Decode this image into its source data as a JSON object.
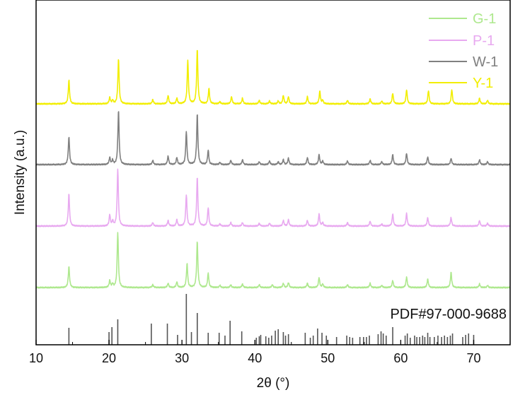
{
  "chart_data": {
    "type": "line",
    "title": "",
    "xlabel": "2θ (°)",
    "ylabel": "Intensity (a.u.)",
    "xlim": [
      10,
      75
    ],
    "xticks": [
      10,
      20,
      30,
      40,
      50,
      60,
      70
    ],
    "y_ticks_shown": false,
    "grid": false,
    "legend_position": "top-right",
    "legend": [
      {
        "name": "G-1",
        "color": "#aee88e"
      },
      {
        "name": "P-1",
        "color": "#e8a9f0"
      },
      {
        "name": "W-1",
        "color": "#808080"
      },
      {
        "name": "Y-1",
        "color": "#f2ee00"
      }
    ],
    "series": [
      {
        "name": "G-1",
        "color": "#aee88e",
        "peaks": [
          [
            14.5,
            30
          ],
          [
            20.1,
            10
          ],
          [
            20.5,
            5
          ],
          [
            21.2,
            78
          ],
          [
            26.0,
            4
          ],
          [
            28.1,
            6
          ],
          [
            29.3,
            8
          ],
          [
            30.7,
            34
          ],
          [
            32.1,
            66
          ],
          [
            33.6,
            20
          ],
          [
            35.2,
            3
          ],
          [
            36.7,
            4
          ],
          [
            38.3,
            5
          ],
          [
            40.6,
            4
          ],
          [
            42.4,
            4
          ],
          [
            43.9,
            6
          ],
          [
            44.6,
            7
          ],
          [
            47.2,
            6
          ],
          [
            48.8,
            14
          ],
          [
            49.3,
            5
          ],
          [
            52.7,
            4
          ],
          [
            55.8,
            6
          ],
          [
            57.4,
            3
          ],
          [
            58.9,
            10
          ],
          [
            60.8,
            15
          ],
          [
            63.7,
            12
          ],
          [
            66.9,
            22
          ],
          [
            70.8,
            5
          ],
          [
            71.9,
            3
          ]
        ]
      },
      {
        "name": "P-1",
        "color": "#e8a9f0",
        "peaks": [
          [
            14.5,
            46
          ],
          [
            20.1,
            16
          ],
          [
            20.5,
            7
          ],
          [
            21.2,
            80
          ],
          [
            26.0,
            5
          ],
          [
            28.1,
            8
          ],
          [
            29.3,
            9
          ],
          [
            30.6,
            44
          ],
          [
            32.1,
            70
          ],
          [
            33.6,
            26
          ],
          [
            35.2,
            3
          ],
          [
            36.7,
            5
          ],
          [
            38.3,
            5
          ],
          [
            40.6,
            4
          ],
          [
            42.0,
            4
          ],
          [
            43.9,
            8
          ],
          [
            44.6,
            9
          ],
          [
            47.2,
            8
          ],
          [
            48.8,
            17
          ],
          [
            49.3,
            5
          ],
          [
            52.7,
            5
          ],
          [
            55.8,
            7
          ],
          [
            57.4,
            3
          ],
          [
            58.9,
            17
          ],
          [
            60.8,
            18
          ],
          [
            63.7,
            12
          ],
          [
            66.9,
            12
          ],
          [
            70.8,
            8
          ],
          [
            71.9,
            4
          ]
        ]
      },
      {
        "name": "W-1",
        "color": "#808080",
        "peaks": [
          [
            14.5,
            40
          ],
          [
            20.1,
            10
          ],
          [
            20.5,
            6
          ],
          [
            21.3,
            77
          ],
          [
            26.0,
            6
          ],
          [
            28.1,
            12
          ],
          [
            29.3,
            10
          ],
          [
            30.6,
            46
          ],
          [
            32.1,
            72
          ],
          [
            33.6,
            20
          ],
          [
            35.2,
            3
          ],
          [
            36.7,
            6
          ],
          [
            38.3,
            7
          ],
          [
            40.6,
            4
          ],
          [
            42.0,
            5
          ],
          [
            43.2,
            4
          ],
          [
            43.9,
            7
          ],
          [
            44.6,
            9
          ],
          [
            47.2,
            10
          ],
          [
            48.8,
            14
          ],
          [
            49.3,
            5
          ],
          [
            52.7,
            5
          ],
          [
            55.8,
            6
          ],
          [
            57.4,
            4
          ],
          [
            58.9,
            14
          ],
          [
            60.8,
            16
          ],
          [
            63.7,
            11
          ],
          [
            66.9,
            9
          ],
          [
            70.8,
            7
          ],
          [
            71.9,
            4
          ]
        ]
      },
      {
        "name": "Y-1",
        "color": "#f2ee00",
        "peaks": [
          [
            14.5,
            34
          ],
          [
            20.1,
            9
          ],
          [
            20.5,
            5
          ],
          [
            21.3,
            64
          ],
          [
            26.0,
            6
          ],
          [
            28.1,
            12
          ],
          [
            29.3,
            8
          ],
          [
            30.8,
            62
          ],
          [
            32.1,
            78
          ],
          [
            33.7,
            22
          ],
          [
            35.2,
            3
          ],
          [
            36.8,
            10
          ],
          [
            38.3,
            8
          ],
          [
            40.6,
            5
          ],
          [
            42.0,
            4
          ],
          [
            43.2,
            4
          ],
          [
            43.9,
            12
          ],
          [
            44.6,
            10
          ],
          [
            47.2,
            10
          ],
          [
            48.9,
            18
          ],
          [
            49.3,
            5
          ],
          [
            52.7,
            5
          ],
          [
            55.8,
            7
          ],
          [
            57.4,
            4
          ],
          [
            58.9,
            15
          ],
          [
            60.8,
            20
          ],
          [
            63.8,
            19
          ],
          [
            67.0,
            20
          ],
          [
            70.8,
            8
          ],
          [
            71.9,
            5
          ]
        ]
      }
    ],
    "reference": {
      "label": "PDF#97-000-9688",
      "color": "#555555",
      "lines": [
        [
          14.5,
          24
        ],
        [
          20.0,
          18
        ],
        [
          20.4,
          25
        ],
        [
          21.2,
          36
        ],
        [
          25.8,
          30
        ],
        [
          28.0,
          30
        ],
        [
          29.4,
          14
        ],
        [
          30.6,
          72
        ],
        [
          31.3,
          18
        ],
        [
          32.1,
          45
        ],
        [
          33.6,
          17
        ],
        [
          35.1,
          17
        ],
        [
          35.9,
          13
        ],
        [
          36.6,
          34
        ],
        [
          38.2,
          19
        ],
        [
          40.2,
          10
        ],
        [
          40.6,
          12
        ],
        [
          40.8,
          14
        ],
        [
          41.5,
          12
        ],
        [
          41.9,
          10
        ],
        [
          42.3,
          13
        ],
        [
          42.8,
          20
        ],
        [
          43.2,
          22
        ],
        [
          43.9,
          18
        ],
        [
          44.2,
          13
        ],
        [
          44.6,
          15
        ],
        [
          46.9,
          17
        ],
        [
          47.6,
          10
        ],
        [
          48.0,
          13
        ],
        [
          48.6,
          23
        ],
        [
          49.2,
          17
        ],
        [
          49.8,
          13
        ],
        [
          51.2,
          11
        ],
        [
          52.6,
          13
        ],
        [
          53.0,
          11
        ],
        [
          53.4,
          10
        ],
        [
          54.4,
          11
        ],
        [
          54.9,
          11
        ],
        [
          55.3,
          11
        ],
        [
          55.7,
          13
        ],
        [
          56.9,
          15
        ],
        [
          57.3,
          19
        ],
        [
          57.6,
          16
        ],
        [
          58.0,
          13
        ],
        [
          58.9,
          25
        ],
        [
          60.6,
          13
        ],
        [
          60.9,
          16
        ],
        [
          61.3,
          10
        ],
        [
          61.9,
          13
        ],
        [
          62.2,
          11
        ],
        [
          62.6,
          11
        ],
        [
          63.0,
          13
        ],
        [
          63.3,
          11
        ],
        [
          63.7,
          17
        ],
        [
          64.0,
          11
        ],
        [
          64.6,
          11
        ],
        [
          65.1,
          13
        ],
        [
          65.6,
          11
        ],
        [
          66.0,
          13
        ],
        [
          66.4,
          11
        ],
        [
          66.8,
          13
        ],
        [
          67.1,
          16
        ],
        [
          68.5,
          11
        ],
        [
          68.9,
          14
        ],
        [
          69.3,
          16
        ],
        [
          70.0,
          14
        ]
      ]
    }
  }
}
